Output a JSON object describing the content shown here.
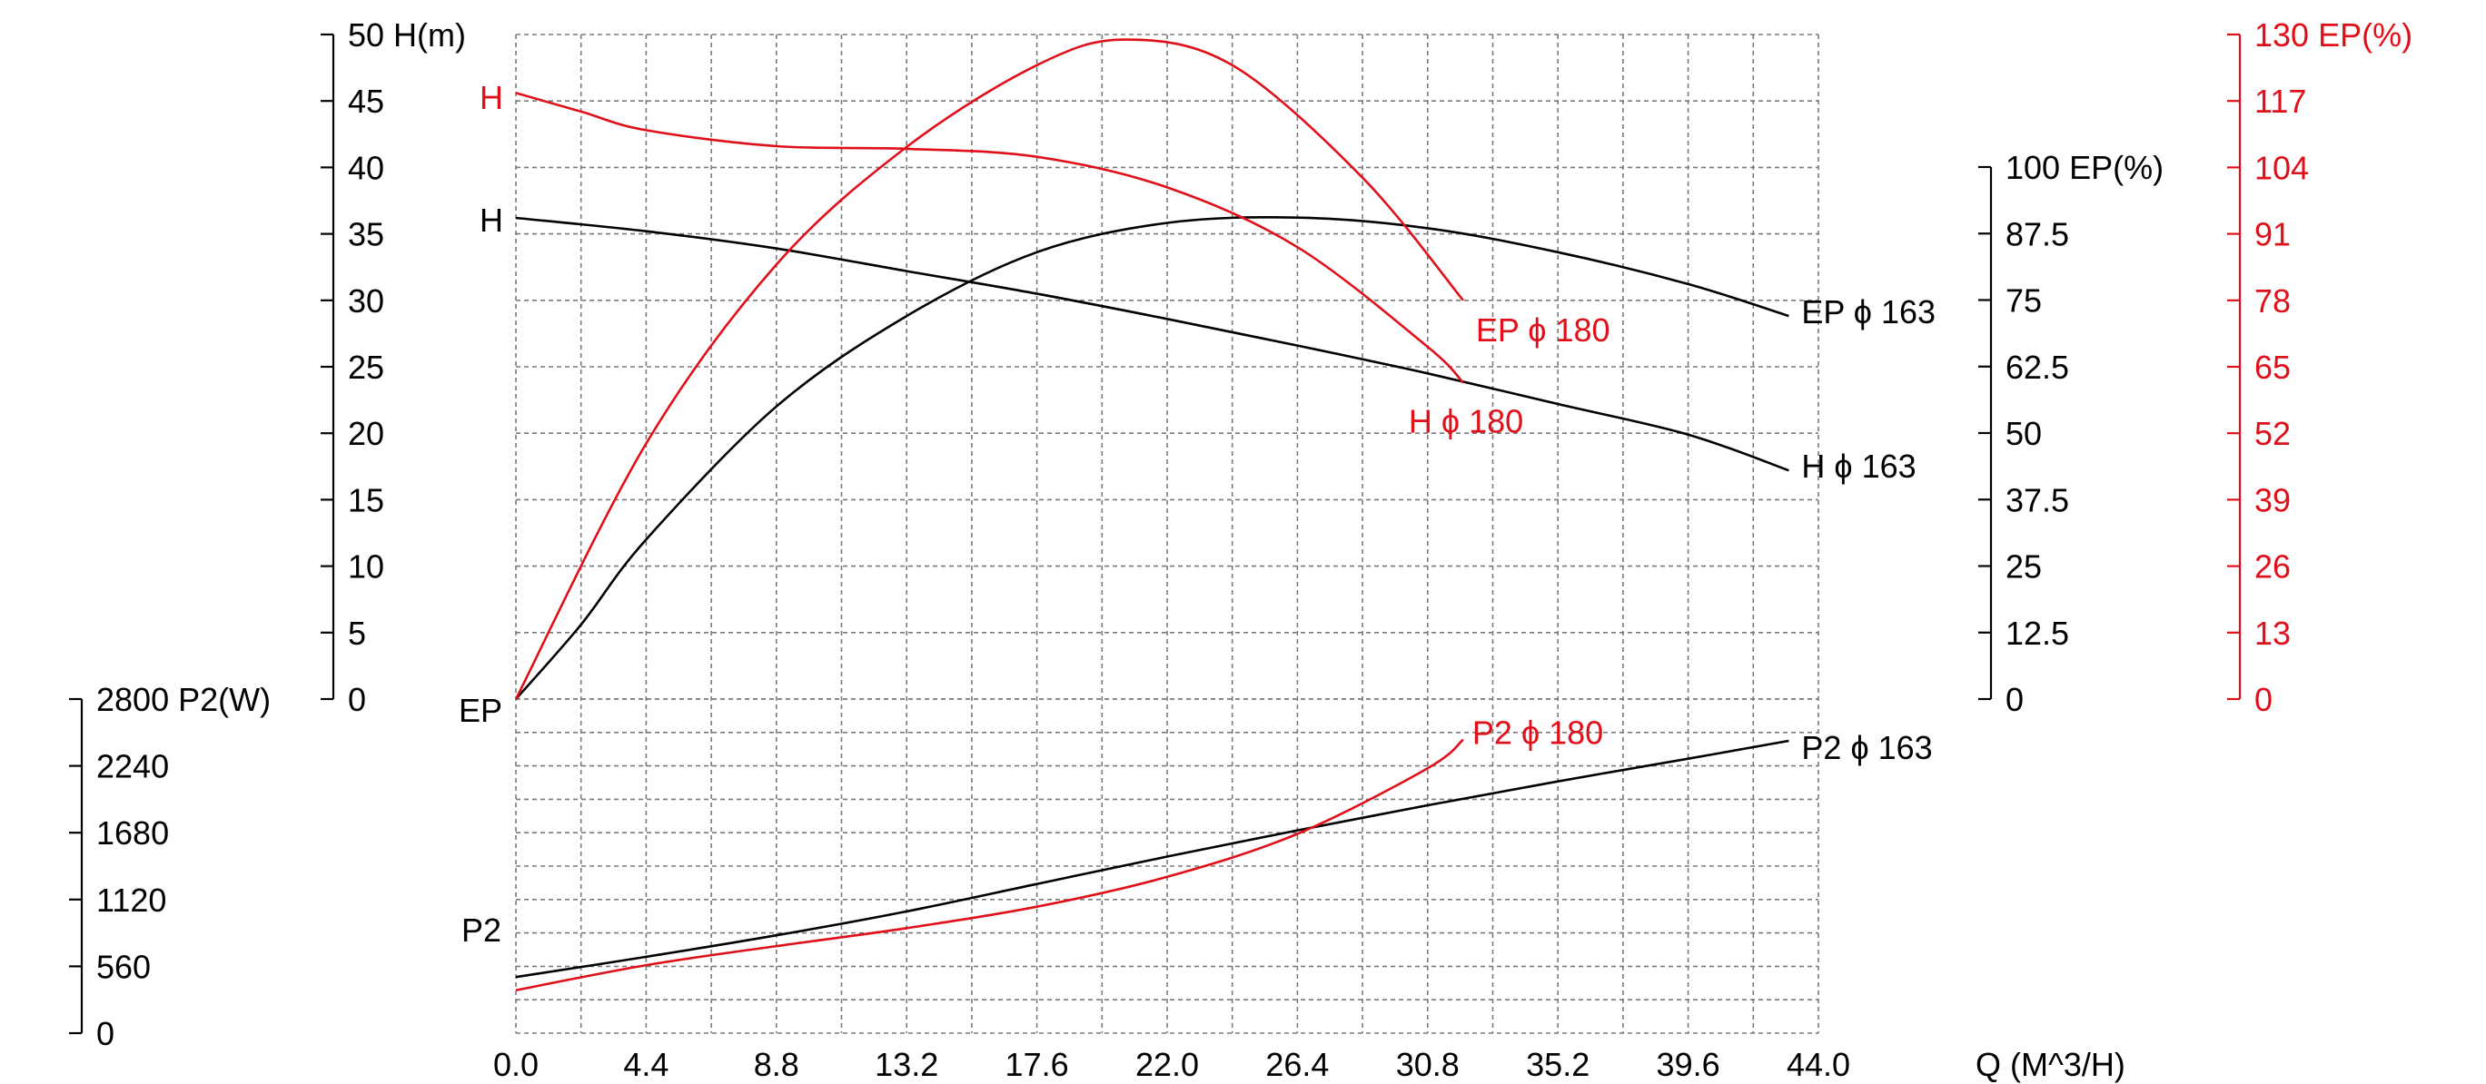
{
  "chart_data": {
    "type": "line",
    "colors": {
      "phi163": "#000000",
      "phi180": "#e0101a",
      "grid": "#7a7a7a"
    },
    "x_axis": {
      "title": "Q (M^3/H)",
      "min": 0,
      "max": 44,
      "step": 2.2,
      "ticks": [
        0,
        4.4,
        8.8,
        13.2,
        17.6,
        22,
        26.4,
        30.8,
        35.2,
        39.6,
        44
      ],
      "tick_labels": [
        "0.0",
        "4.4",
        "8.8",
        "13.2",
        "17.6",
        "22.0",
        "26.4",
        "30.8",
        "35.2",
        "39.6",
        "44.0"
      ]
    },
    "y_axes": {
      "head": {
        "title": "H(m)",
        "min": 0,
        "max": 50,
        "ticks": [
          0,
          5,
          10,
          15,
          20,
          25,
          30,
          35,
          40,
          45,
          50
        ],
        "tick_labels": [
          "0",
          "5",
          "10",
          "15",
          "20",
          "25",
          "30",
          "35",
          "40",
          "45",
          "50"
        ]
      },
      "power": {
        "title": "P2(W)",
        "min": 0,
        "max": 2800,
        "ticks": [
          0,
          560,
          1120,
          1680,
          2240,
          2800
        ],
        "tick_labels": [
          "0",
          "560",
          "1120",
          "1680",
          "2240",
          "2800"
        ]
      },
      "eff_163": {
        "title": "EP(%)",
        "min": 0,
        "max": 100,
        "ticks": [
          0,
          12.5,
          25,
          37.5,
          50,
          62.5,
          75,
          87.5,
          100
        ],
        "tick_labels": [
          "0",
          "12.5",
          "25",
          "37.5",
          "50",
          "62.5",
          "75",
          "87.5",
          "100"
        ]
      },
      "eff_180": {
        "title": "EP(%)",
        "min": 0,
        "max": 130,
        "ticks": [
          0,
          13,
          26,
          39,
          52,
          65,
          78,
          91,
          104,
          117,
          130
        ],
        "tick_labels": [
          "0",
          "13",
          "26",
          "39",
          "52",
          "65",
          "78",
          "91",
          "104",
          "117",
          "130"
        ]
      }
    },
    "series": [
      {
        "name": "H ϕ 163",
        "axis": "head",
        "color": "black",
        "x": [
          0,
          4.4,
          8.8,
          13.2,
          17.6,
          22,
          26.4,
          30.8,
          35.2,
          39.6,
          43.0
        ],
        "y": [
          36.2,
          35.2,
          33.9,
          32.2,
          30.5,
          28.6,
          26.6,
          24.5,
          22.2,
          19.9,
          17.2
        ]
      },
      {
        "name": "EP ϕ 163",
        "axis": "eff_163",
        "color": "black",
        "x": [
          0,
          2.2,
          4.4,
          8.8,
          13.2,
          17.6,
          22,
          26.4,
          30.8,
          35.2,
          39.6,
          43.0
        ],
        "y": [
          0,
          14,
          30,
          55,
          72,
          84,
          89.5,
          90.5,
          88.5,
          84,
          78,
          72
        ]
      },
      {
        "name": "P2 ϕ 163",
        "axis": "power",
        "color": "black",
        "x": [
          0,
          4.4,
          8.8,
          13.2,
          17.6,
          22,
          26.4,
          30.8,
          35.2,
          39.6,
          43.0
        ],
        "y": [
          470,
          640,
          820,
          1020,
          1250,
          1480,
          1700,
          1910,
          2110,
          2300,
          2450
        ]
      },
      {
        "name": "H ϕ 180",
        "axis": "head",
        "color": "red",
        "x": [
          0,
          2.2,
          4.4,
          8.8,
          13.2,
          17.6,
          22,
          26.4,
          30.8,
          32.0
        ],
        "y": [
          45.6,
          44.2,
          42.8,
          41.6,
          41.4,
          40.8,
          38.5,
          34.0,
          26.5,
          23.8
        ]
      },
      {
        "name": "EP ϕ 180",
        "axis": "eff_180",
        "color": "red",
        "x": [
          0,
          4.4,
          8.8,
          13.2,
          17.6,
          20.6,
          24.2,
          28.6,
          32.0
        ],
        "y": [
          0,
          50,
          85,
          108,
          124,
          129,
          124,
          102,
          78
        ]
      },
      {
        "name": "P2 ϕ 180",
        "axis": "power",
        "color": "red",
        "x": [
          0,
          4.4,
          8.8,
          13.2,
          17.6,
          22,
          26.4,
          30.8,
          32.0
        ],
        "y": [
          360,
          570,
          730,
          880,
          1060,
          1310,
          1670,
          2220,
          2460
        ]
      }
    ],
    "left_labels": [
      {
        "text": "H",
        "color": "red"
      },
      {
        "text": "H",
        "color": "black"
      },
      {
        "text": "EP",
        "color": "black"
      },
      {
        "text": "P2",
        "color": "black"
      }
    ]
  }
}
